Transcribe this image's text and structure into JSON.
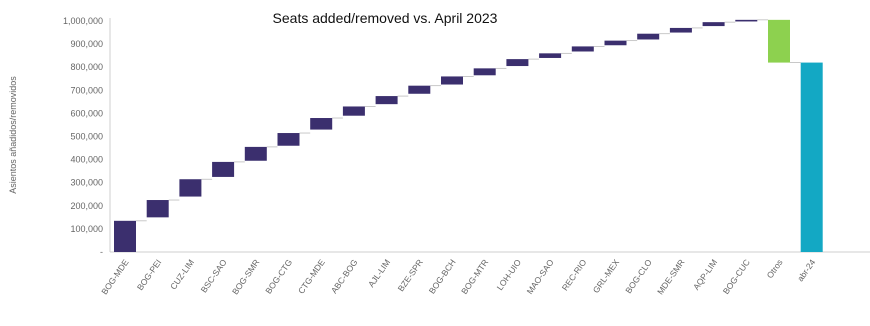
{
  "chart_data": {
    "type": "bar",
    "subtype": "waterfall",
    "title": "Seats added/removed vs. April 2023",
    "ylabel": "Asientos añadidos/removidos",
    "xlabel": "",
    "ylim": [
      0,
      1000000
    ],
    "yticks": [
      "-",
      "100,000",
      "200,000",
      "300,000",
      "400,000",
      "500,000",
      "600,000",
      "700,000",
      "800,000",
      "900,000",
      "1,000,000"
    ],
    "categories": [
      "BOG-MDE",
      "BOG-PEI",
      "CUZ-LIM",
      "BSC-SAO",
      "BOG-SMR",
      "BOG-CTG",
      "CTG-MDE",
      "ABC-BOG",
      "AJL-LIM",
      "BZE-SPR",
      "BOG-BCH",
      "BOG-MTR",
      "LOH-UIO",
      "MAO-SAO",
      "REC-RIO",
      "GRL-MEX",
      "BOG-CLO",
      "MDE-SMR",
      "AQP-LIM",
      "BOG-CUC",
      "Otros",
      "abr-24"
    ],
    "bars": [
      {
        "category": "BOG-MDE",
        "start": 0,
        "end": 135000,
        "kind": "increase"
      },
      {
        "category": "BOG-PEI",
        "start": 150000,
        "end": 225000,
        "kind": "increase"
      },
      {
        "category": "CUZ-LIM",
        "start": 240000,
        "end": 315000,
        "kind": "increase"
      },
      {
        "category": "BSC-SAO",
        "start": 325000,
        "end": 390000,
        "kind": "increase"
      },
      {
        "category": "BOG-SMR",
        "start": 395000,
        "end": 455000,
        "kind": "increase"
      },
      {
        "category": "BOG-CTG",
        "start": 460000,
        "end": 515000,
        "kind": "increase"
      },
      {
        "category": "CTG-MDE",
        "start": 530000,
        "end": 580000,
        "kind": "increase"
      },
      {
        "category": "ABC-BOG",
        "start": 590000,
        "end": 630000,
        "kind": "increase"
      },
      {
        "category": "AJL-LIM",
        "start": 640000,
        "end": 675000,
        "kind": "increase"
      },
      {
        "category": "BZE-SPR",
        "start": 685000,
        "end": 720000,
        "kind": "increase"
      },
      {
        "category": "BOG-BCH",
        "start": 725000,
        "end": 760000,
        "kind": "increase"
      },
      {
        "category": "BOG-MTR",
        "start": 765000,
        "end": 795000,
        "kind": "increase"
      },
      {
        "category": "LOH-UIO",
        "start": 805000,
        "end": 835000,
        "kind": "increase"
      },
      {
        "category": "MAO-SAO",
        "start": 840000,
        "end": 860000,
        "kind": "increase"
      },
      {
        "category": "REC-RIO",
        "start": 868000,
        "end": 890000,
        "kind": "increase"
      },
      {
        "category": "GRL-MEX",
        "start": 895000,
        "end": 915000,
        "kind": "increase"
      },
      {
        "category": "BOG-CLO",
        "start": 920000,
        "end": 945000,
        "kind": "increase"
      },
      {
        "category": "MDE-SMR",
        "start": 950000,
        "end": 970000,
        "kind": "increase"
      },
      {
        "category": "AQP-LIM",
        "start": 978000,
        "end": 995000,
        "kind": "increase"
      },
      {
        "category": "BOG-CUC",
        "start": 998000,
        "end": 1005000,
        "kind": "increase"
      },
      {
        "category": "Otros",
        "start": 820000,
        "end": 1005000,
        "kind": "decrease"
      },
      {
        "category": "abr-24",
        "start": 0,
        "end": 820000,
        "kind": "total"
      }
    ],
    "colors": {
      "increase": "#3b2f6e",
      "decrease": "#8dd14f",
      "total": "#13a8c4",
      "connector": "#bbbbbb",
      "axis": "#cfcfcf"
    },
    "grid": false,
    "legend": "none"
  }
}
